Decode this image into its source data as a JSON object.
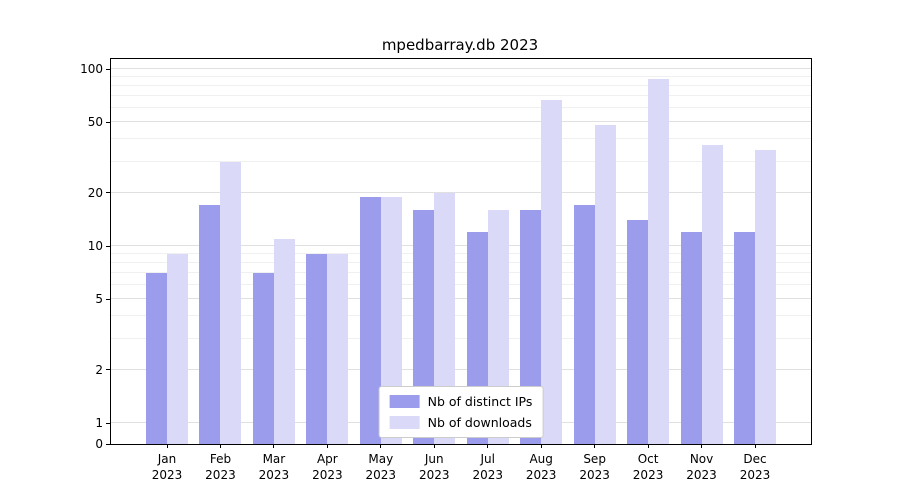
{
  "title": "mpedbarray.db 2023",
  "chart_data": {
    "type": "bar",
    "title": "mpedbarray.db 2023",
    "yscale": "symlog",
    "grid": true,
    "legend_position": "lower center",
    "ylim": [
      0,
      100
    ],
    "y_ticks": [
      100,
      50,
      20,
      10,
      5,
      2,
      1,
      0
    ],
    "y_ticks_minor": [
      3,
      4,
      6,
      7,
      8,
      9,
      30,
      40,
      60,
      70,
      80,
      90
    ],
    "months": [
      "Jan",
      "Feb",
      "Mar",
      "Apr",
      "May",
      "Jun",
      "Jul",
      "Aug",
      "Sep",
      "Oct",
      "Nov",
      "Dec"
    ],
    "year": "2023",
    "categories": [
      "Jan 2023",
      "Feb 2023",
      "Mar 2023",
      "Apr 2023",
      "May 2023",
      "Jun 2023",
      "Jul 2023",
      "Aug 2023",
      "Sep 2023",
      "Oct 2023",
      "Nov 2023",
      "Dec 2023"
    ],
    "series": [
      {
        "name": "Nb of distinct IPs",
        "color": "#9c9cec",
        "values": [
          7,
          17,
          7,
          9,
          19,
          16,
          12,
          16,
          17,
          14,
          12,
          12
        ]
      },
      {
        "name": "Nb of downloads",
        "color": "#dadaf8",
        "values": [
          9,
          30,
          11,
          9,
          19,
          20,
          16,
          67,
          48,
          88,
          37,
          35
        ]
      }
    ],
    "colors": {
      "grid_major": "#e0e0e0",
      "grid_minor": "#f0f0f0",
      "axis": "#000000"
    }
  }
}
